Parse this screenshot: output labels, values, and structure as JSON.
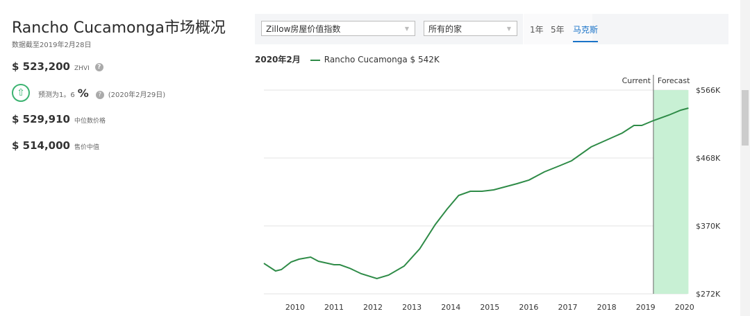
{
  "header": {
    "title": "Rancho Cucamonga市场概况",
    "as_of": "数据截至2019年2月28日"
  },
  "stats": {
    "zhvi_value": "$ 523,200",
    "zhvi_label": "ZHVI",
    "forecast_text": "预测为1。6",
    "forecast_unit": "%",
    "forecast_date": "(2020年2月29日)",
    "list_value": "$ 529,910",
    "list_label": "中位数价格",
    "sold_value": "$ 514,000",
    "sold_label": "售价中值",
    "help_icon": "?",
    "up_icon": "arrow-up-circle"
  },
  "toolbar": {
    "metric_select": "Zillow房屋价值指数",
    "home_type_select": "所有的家",
    "tabs": [
      "1年",
      "5年",
      "马克斯"
    ],
    "active_tab": 2,
    "accent": "#1a73c8"
  },
  "chart_data": {
    "type": "line",
    "legend_date": "2020年2月",
    "series": [
      {
        "name": "Rancho Cucamonga $ 542K",
        "color": "#2e8b47",
        "x": [
          2009.2,
          2009.5,
          2009.65,
          2009.9,
          2010.1,
          2010.4,
          2010.6,
          2011.0,
          2011.15,
          2011.4,
          2011.7,
          2012.1,
          2012.4,
          2012.8,
          2013.2,
          2013.6,
          2013.9,
          2014.2,
          2014.5,
          2014.8,
          2015.1,
          2015.7,
          2016.0,
          2016.4,
          2016.8,
          2017.1,
          2017.6,
          2018.0,
          2018.4,
          2018.7,
          2018.9,
          2019.2,
          2019.6,
          2019.9,
          2020.1
        ],
        "y": [
          316,
          305,
          307,
          318,
          322,
          325,
          319,
          314,
          314,
          309,
          301,
          294,
          299,
          312,
          337,
          372,
          394,
          414,
          420,
          420,
          422,
          431,
          436,
          448,
          457,
          464,
          484,
          494,
          504,
          515,
          515,
          522,
          530,
          537,
          540
        ]
      }
    ],
    "yunit": "K USD",
    "ylim": [
      272,
      566
    ],
    "yticks": [
      "$272K",
      "$370K",
      "$468K",
      "$566K"
    ],
    "ytick_values": [
      272,
      370,
      468,
      566
    ],
    "xlim": [
      2009.2,
      2020.2
    ],
    "xticks": [
      "2010",
      "2011",
      "2012",
      "2013",
      "2014",
      "2015",
      "2016",
      "2017",
      "2018",
      "2019",
      "2020"
    ],
    "forecast_range": [
      2019.2,
      2020.1
    ],
    "annotations": {
      "current": "Current",
      "forecast": "Forecast"
    },
    "forecast_color": "#c8f0d4",
    "grid": true
  }
}
